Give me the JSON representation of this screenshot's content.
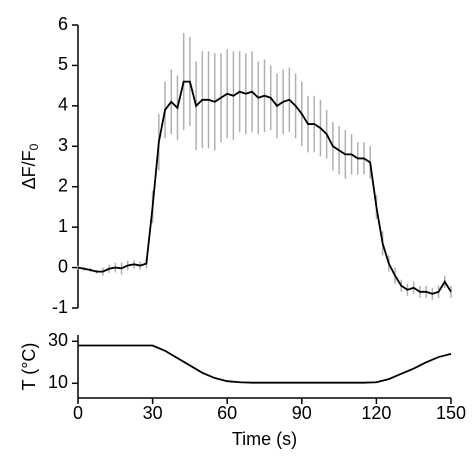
{
  "chart_data": [
    {
      "type": "line",
      "ylabel": "ΔF/F",
      "ylabel_subscript": "0",
      "color": "#000000",
      "error_color": "#b0b0b0",
      "xlim": [
        0,
        150
      ],
      "ylim": [
        -1,
        6
      ],
      "yticks": [
        -1,
        0,
        1,
        2,
        3,
        4,
        5,
        6
      ],
      "x": [
        0,
        2.5,
        5,
        7.5,
        10,
        12.5,
        15,
        17.5,
        20,
        22.5,
        25,
        27.5,
        30,
        32.5,
        35,
        37.5,
        40,
        42.5,
        45,
        47.5,
        50,
        52.5,
        55,
        57.5,
        60,
        62.5,
        65,
        67.5,
        70,
        72.5,
        75,
        77.5,
        80,
        82.5,
        85,
        87.5,
        90,
        92.5,
        95,
        97.5,
        100,
        102.5,
        105,
        107.5,
        110,
        112.5,
        115,
        117.5,
        120,
        122.5,
        125,
        127.5,
        130,
        132.5,
        135,
        137.5,
        140,
        142.5,
        145,
        147.5,
        150
      ],
      "values": [
        0,
        -0.03,
        -0.06,
        -0.1,
        -0.1,
        -0.03,
        0,
        -0.02,
        0.05,
        0.08,
        0.05,
        0.1,
        1.5,
        3.1,
        3.9,
        4.1,
        3.95,
        4.6,
        4.6,
        4.0,
        4.15,
        4.15,
        4.1,
        4.2,
        4.3,
        4.25,
        4.35,
        4.3,
        4.35,
        4.2,
        4.25,
        4.2,
        4.0,
        4.1,
        4.15,
        4.0,
        3.8,
        3.55,
        3.55,
        3.45,
        3.3,
        3.0,
        2.9,
        2.8,
        2.8,
        2.7,
        2.7,
        2.6,
        1.5,
        0.6,
        0.1,
        -0.2,
        -0.45,
        -0.55,
        -0.5,
        -0.6,
        -0.6,
        -0.65,
        -0.6,
        -0.35,
        -0.6
      ],
      "errors": [
        0.05,
        0.05,
        0.05,
        0.05,
        0.1,
        0.1,
        0.12,
        0.15,
        0.12,
        0.1,
        0.1,
        0.12,
        0.4,
        0.7,
        0.7,
        0.8,
        0.8,
        1.2,
        1.1,
        1.1,
        1.2,
        1.2,
        1.2,
        1.1,
        1.1,
        1.1,
        1.0,
        1.0,
        1.0,
        0.9,
        0.9,
        0.8,
        0.8,
        0.8,
        0.8,
        0.8,
        0.8,
        0.7,
        0.7,
        0.7,
        0.6,
        0.6,
        0.6,
        0.6,
        0.5,
        0.4,
        0.4,
        0.4,
        0.3,
        0.3,
        0.2,
        0.2,
        0.15,
        0.15,
        0.15,
        0.15,
        0.15,
        0.15,
        0.15,
        0.15,
        0.15
      ]
    },
    {
      "type": "line",
      "ylabel": "T (°C)",
      "xlabel": "Time (s)",
      "color": "#000000",
      "xlim": [
        0,
        150
      ],
      "ylim": [
        3,
        33
      ],
      "yticks": [
        10,
        30
      ],
      "xticks": [
        0,
        30,
        60,
        90,
        120,
        150
      ],
      "x": [
        0,
        5,
        10,
        15,
        20,
        25,
        30,
        35,
        40,
        45,
        50,
        55,
        60,
        65,
        70,
        75,
        80,
        85,
        90,
        95,
        100,
        105,
        110,
        115,
        120,
        125,
        130,
        135,
        140,
        145,
        150
      ],
      "values": [
        28,
        28,
        28,
        28,
        28,
        28,
        28,
        25.5,
        22,
        18.5,
        15,
        12.5,
        11,
        10.5,
        10.3,
        10.3,
        10.3,
        10.3,
        10.3,
        10.3,
        10.3,
        10.3,
        10.3,
        10.3,
        10.5,
        12,
        14.5,
        17,
        20,
        22.5,
        24
      ]
    }
  ]
}
